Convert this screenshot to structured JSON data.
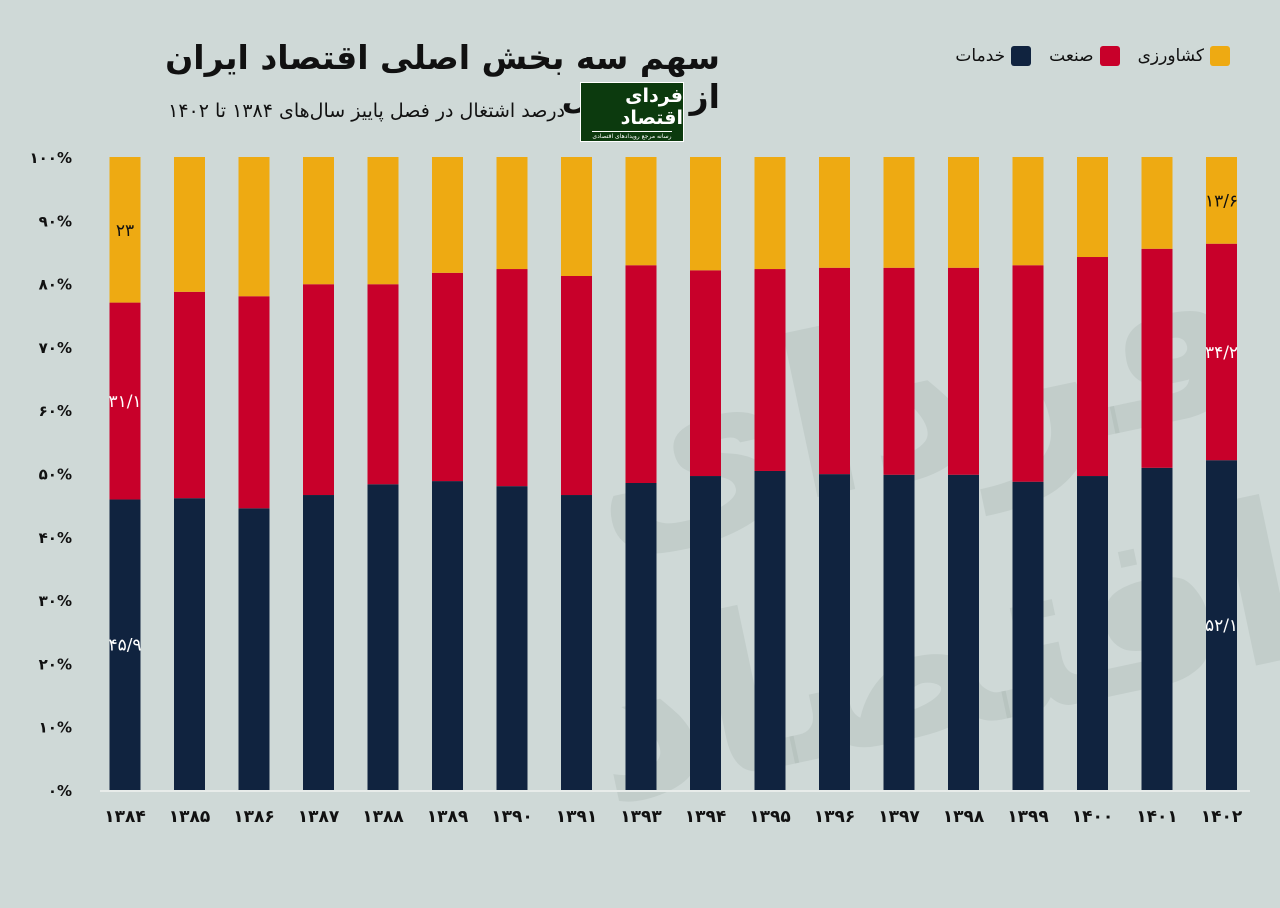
{
  "title": "سهم سه بخش اصلی اقتصاد ایران از اشتغال",
  "subtitle": "درصد اشتغال در فصل پاییز سال‌های ۱۳۸۴ تا ۱۴۰۲",
  "logo": {
    "text": "فردای اقتصاد",
    "tagline": "رسانه مرجع رویدادهای اقتصادی"
  },
  "colors": {
    "services": "#10233f",
    "industry": "#c8002a",
    "agriculture": "#eeaa12",
    "background": "#cfd9d7"
  },
  "chart_data": {
    "type": "bar",
    "stacked": true,
    "title": "سهم سه بخش اصلی اقتصاد ایران از اشتغال",
    "subtitle": "درصد اشتغال در فصل پاییز سال‌های ۱۳۸۴ تا ۱۴۰۲",
    "categories": [
      "۱۳۸۴",
      "۱۳۸۵",
      "۱۳۸۶",
      "۱۳۸۷",
      "۱۳۸۸",
      "۱۳۸۹",
      "۱۳۹۰",
      "۱۳۹۱",
      "۱۳۹۳",
      "۱۳۹۴",
      "۱۳۹۵",
      "۱۳۹۶",
      "۱۳۹۷",
      "۱۳۹۸",
      "۱۳۹۹",
      "۱۴۰۰",
      "۱۴۰۱",
      "۱۴۰۲"
    ],
    "series": [
      {
        "name": "خدمات",
        "color": "#10233f",
        "values": [
          45.9,
          46.1,
          44.5,
          46.6,
          48.3,
          48.8,
          48.0,
          46.6,
          48.5,
          49.6,
          50.4,
          49.9,
          49.8,
          49.8,
          48.7,
          49.6,
          50.9,
          52.1
        ]
      },
      {
        "name": "صنعت",
        "color": "#c8002a",
        "values": [
          31.1,
          32.6,
          33.5,
          33.3,
          31.6,
          32.9,
          34.3,
          34.6,
          34.4,
          32.5,
          31.9,
          32.6,
          32.7,
          32.7,
          34.2,
          34.6,
          34.6,
          34.2
        ]
      },
      {
        "name": "کشاورزی",
        "color": "#eeaa12",
        "values": [
          23.0,
          21.3,
          22.0,
          20.1,
          20.1,
          18.3,
          17.7,
          18.8,
          17.1,
          17.9,
          17.7,
          17.5,
          17.5,
          17.5,
          17.1,
          15.8,
          14.5,
          13.6
        ]
      }
    ],
    "data_labels": [
      {
        "category": "۱۳۸۴",
        "series": "خدمات",
        "text": "۴۵/۹"
      },
      {
        "category": "۱۳۸۴",
        "series": "صنعت",
        "text": "۳۱/۱"
      },
      {
        "category": "۱۳۸۴",
        "series": "کشاورزی",
        "text": "۲۳"
      },
      {
        "category": "۱۴۰۲",
        "series": "خدمات",
        "text": "۵۲/۱"
      },
      {
        "category": "۱۴۰۲",
        "series": "صنعت",
        "text": "۳۴/۲"
      },
      {
        "category": "۱۴۰۲",
        "series": "کشاورزی",
        "text": "۱۳/۶"
      }
    ],
    "ylim": [
      0,
      100
    ],
    "yticks": [
      0,
      10,
      20,
      30,
      40,
      50,
      60,
      70,
      80,
      90,
      100
    ],
    "ytick_labels": [
      "۰%",
      "۱۰%",
      "۲۰%",
      "۳۰%",
      "۴۰%",
      "۵۰%",
      "۶۰%",
      "۷۰%",
      "۸۰%",
      "۹۰%",
      "۱۰۰%"
    ],
    "grid": false,
    "legend_placement": "top-right",
    "xlabel": "",
    "ylabel": ""
  }
}
